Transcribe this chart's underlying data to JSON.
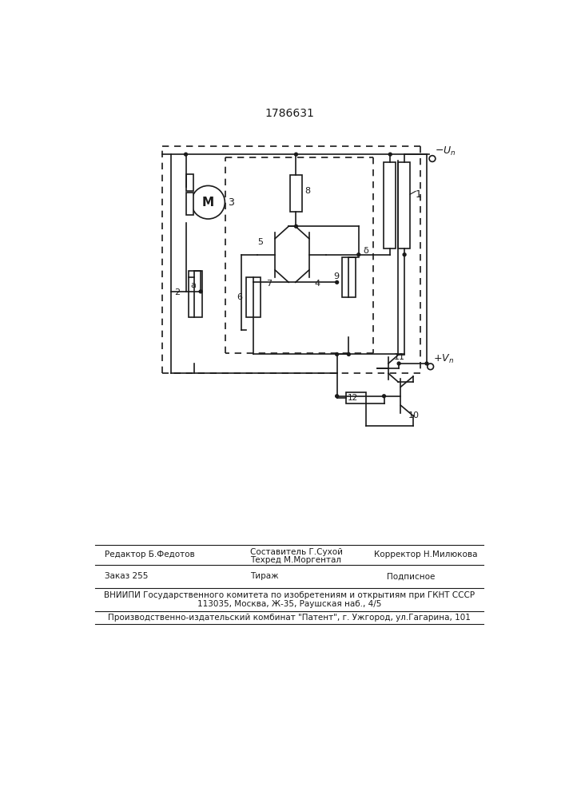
{
  "title": "1786631",
  "bg_color": "#ffffff",
  "line_color": "#1a1a1a",
  "line_width": 1.2,
  "footer": {
    "editor": "Редактор Б.Федотов",
    "composer1": "Составитель Г.Сухой",
    "composer2": "Техред М.Моргентал",
    "corrector": "Корректор Н.Милюкова",
    "order": "Заказ 255",
    "tirazh": "Тираж",
    "podpisnoe": "Подписное",
    "vniipki": "ВНИИПИ Государственного комитета по изобретениям и открытиям при ГКНТ СССР",
    "address": "113035, Москва, Ж-35, Раушская наб., 4/5",
    "patent": "Производственно-издательский комбинат \"Патент\", г. Ужгород, ул.Гагарина, 101"
  }
}
